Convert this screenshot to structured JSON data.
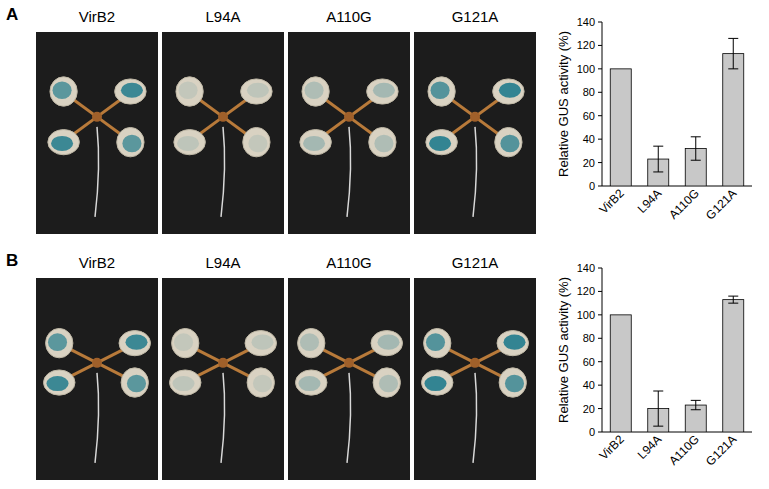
{
  "chart_data": [
    {
      "type": "bar",
      "panel": "A",
      "photo_labels": [
        "VirB2",
        "L94A",
        "A110G",
        "G121A"
      ],
      "y_label": "Relative GUS activity (%)",
      "categories": [
        "VirB2",
        "L94A",
        "A110G",
        "G121A"
      ],
      "values": [
        100,
        23,
        32,
        113
      ],
      "errors": [
        null,
        11,
        10,
        13
      ],
      "color": "#c8c8c8",
      "ylim": [
        0,
        140
      ],
      "yticks": [
        0,
        20,
        40,
        60,
        80,
        100,
        120,
        140
      ],
      "grid": false
    },
    {
      "type": "bar",
      "panel": "B",
      "photo_labels": [
        "VirB2",
        "L94A",
        "A110G",
        "G121A"
      ],
      "y_label": "Relative GUS activity (%)",
      "categories": [
        "VirB2",
        "L94A",
        "A110G",
        "G121A"
      ],
      "values": [
        100,
        20,
        23,
        113
      ],
      "errors": [
        null,
        15,
        4,
        3
      ],
      "color": "#c8c8c8",
      "ylim": [
        0,
        140
      ],
      "yticks": [
        0,
        20,
        40,
        60,
        80,
        100,
        120,
        140
      ],
      "grid": false
    }
  ]
}
